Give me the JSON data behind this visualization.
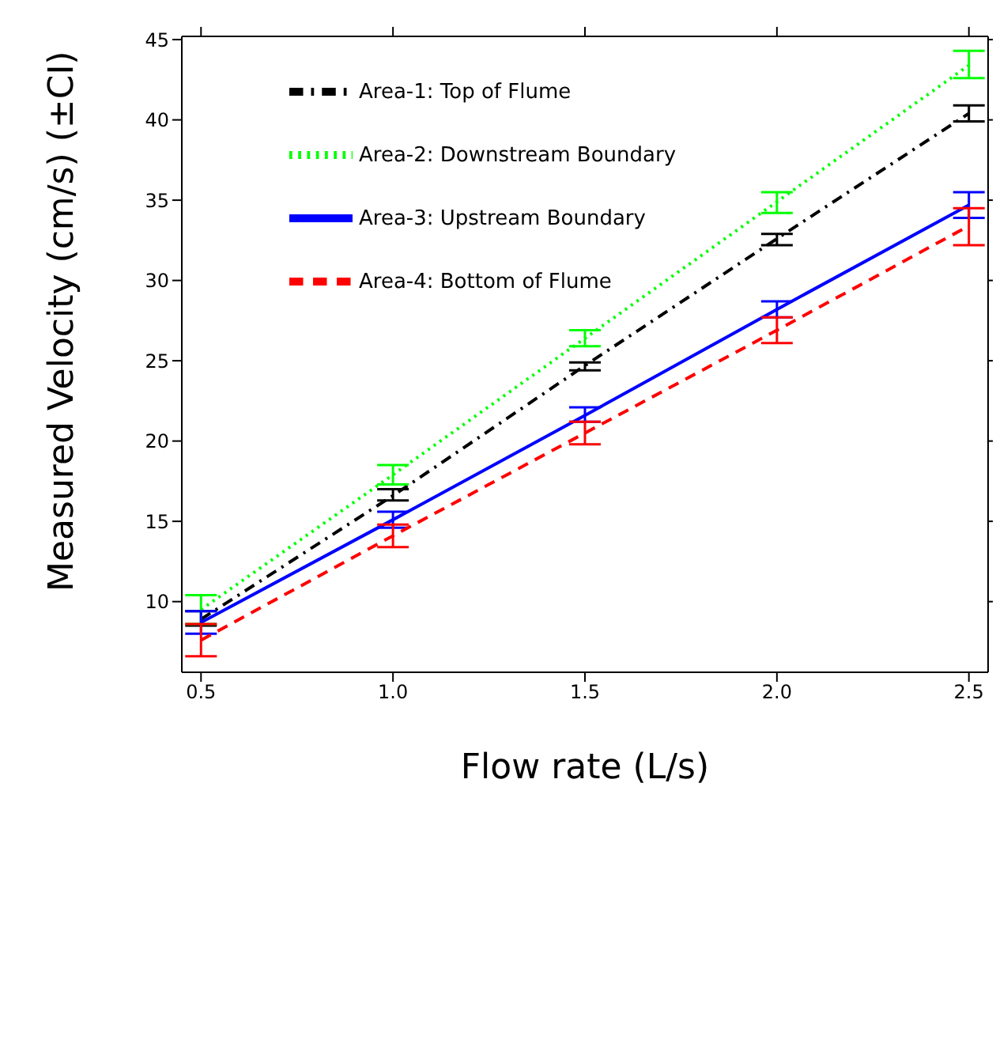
{
  "chart_data": {
    "type": "line",
    "xlabel": "Flow rate (L/s)",
    "ylabel": "Measured Velocity (cm/s) (±CI)",
    "x": [
      0.5,
      1.0,
      1.5,
      2.0,
      2.5
    ],
    "series": [
      {
        "name": "Area-1: Top of Flume",
        "color": "#000000",
        "line_style": "dashdot",
        "values": [
          8.9,
          16.6,
          24.7,
          32.6,
          40.4
        ],
        "errors": [
          [
            8.5,
            9.4
          ],
          [
            16.3,
            17.0
          ],
          [
            24.4,
            24.9
          ],
          [
            32.2,
            32.9
          ],
          [
            39.9,
            40.9
          ]
        ]
      },
      {
        "name": "Area-2: Downstream Boundary",
        "color": "#00ff00",
        "line_style": "dotted",
        "values": [
          9.5,
          17.9,
          26.4,
          34.9,
          43.4
        ],
        "errors": [
          [
            8.6,
            10.4
          ],
          [
            17.3,
            18.5
          ],
          [
            25.9,
            26.9
          ],
          [
            34.2,
            35.5
          ],
          [
            42.6,
            44.3
          ]
        ]
      },
      {
        "name": "Area-3: Upstream Boundary",
        "color": "#0000ff",
        "line_style": "solid",
        "values": [
          8.7,
          15.1,
          21.6,
          28.2,
          34.7
        ],
        "errors": [
          [
            8.0,
            9.4
          ],
          [
            14.6,
            15.6
          ],
          [
            21.2,
            22.1
          ],
          [
            27.7,
            28.7
          ],
          [
            33.9,
            35.5
          ]
        ]
      },
      {
        "name": "Area-4: Bottom of Flume",
        "color": "#ff0000",
        "line_style": "dashed",
        "values": [
          7.6,
          14.1,
          20.5,
          26.9,
          33.4
        ],
        "errors": [
          [
            6.6,
            8.6
          ],
          [
            13.4,
            14.8
          ],
          [
            19.8,
            21.2
          ],
          [
            26.1,
            27.7
          ],
          [
            32.2,
            34.5
          ]
        ]
      }
    ],
    "xlim": [
      0.45,
      2.55
    ],
    "xticks": [
      {
        "value": 0.5,
        "label": "0.5"
      },
      {
        "value": 1.0,
        "label": "1.0"
      },
      {
        "value": 1.5,
        "label": "1.5"
      },
      {
        "value": 2.0,
        "label": "2.0"
      },
      {
        "value": 2.5,
        "label": "2.5"
      }
    ],
    "ylim": [
      5.6,
      45.2
    ],
    "yticks": [
      10,
      15,
      20,
      25,
      30,
      35,
      40,
      45
    ],
    "grid": false,
    "legend": "top left",
    "marker": "none"
  }
}
